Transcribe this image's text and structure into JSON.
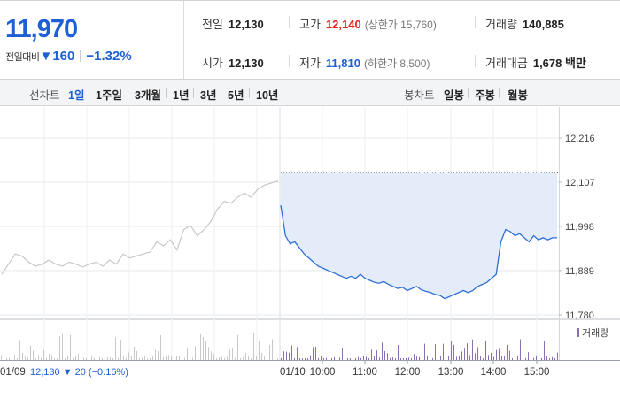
{
  "header": {
    "current_price": "11,970",
    "change_label": "전일대비",
    "change_arrow": "▼",
    "change_value": "160",
    "change_percent": "−1.32%",
    "stats": {
      "prev_close": {
        "label": "전일",
        "value": "12,130"
      },
      "high": {
        "label": "고가",
        "value": "12,140",
        "sub": "(상한가 15,760)"
      },
      "volume": {
        "label": "거래량",
        "value": "140,885"
      },
      "open": {
        "label": "시가",
        "value": "12,130"
      },
      "low": {
        "label": "저가",
        "value": "11,810",
        "sub": "(하한가 8,500)"
      },
      "trade_value": {
        "label": "거래대금",
        "value": "1,678 백만"
      }
    }
  },
  "tabs": {
    "line_label": "선차트",
    "line_items": [
      "1일",
      "1주일",
      "3개월",
      "1년",
      "3년",
      "5년",
      "10년"
    ],
    "active_line": "1일",
    "candle_label": "봉차트",
    "candle_items": [
      "일봉",
      "주봉",
      "월봉"
    ]
  },
  "chart_data": {
    "type": "line",
    "y_tick_labels": [
      "12,216",
      "12,107",
      "11,998",
      "11,889",
      "11,780"
    ],
    "ylim": [
      11780,
      12216
    ],
    "prev_close": 12130,
    "previous_day": {
      "date_label": "01/09",
      "close_label": "12,130",
      "change_arrow": "▼",
      "change_label": "20",
      "change_pct_label": "(−0.16%)",
      "color": "#c8c8c8",
      "values": [
        11880,
        11905,
        11930,
        11925,
        11910,
        11900,
        11905,
        11915,
        11905,
        11900,
        11910,
        11905,
        11898,
        11905,
        11910,
        11900,
        11915,
        11905,
        11930,
        11920,
        11925,
        11930,
        11935,
        11960,
        11950,
        11965,
        11940,
        11990,
        12000,
        11975,
        11990,
        12010,
        12040,
        12060,
        12055,
        12070,
        12080,
        12070,
        12090,
        12100,
        12105,
        12110
      ]
    },
    "today": {
      "date_label": "01/10",
      "x_tick_labels": [
        "10:00",
        "11:00",
        "12:00",
        "13:00",
        "14:00",
        "15:00"
      ],
      "color": "#2f6fd6",
      "fill": "#e3ecf8",
      "values": [
        12050,
        11975,
        11955,
        11960,
        11945,
        11930,
        11920,
        11910,
        11900,
        11895,
        11890,
        11885,
        11880,
        11875,
        11870,
        11875,
        11870,
        11880,
        11870,
        11865,
        11860,
        11858,
        11862,
        11855,
        11850,
        11845,
        11848,
        11840,
        11845,
        11850,
        11842,
        11838,
        11835,
        11830,
        11828,
        11820,
        11825,
        11830,
        11835,
        11840,
        11835,
        11840,
        11850,
        11855,
        11860,
        11870,
        11880,
        11960,
        11990,
        11985,
        11975,
        11980,
        11970,
        11960,
        11975,
        11965,
        11970,
        11965,
        11970,
        11970
      ]
    },
    "volume_legend": "거래량",
    "volume_color": "#8a6fb7"
  }
}
